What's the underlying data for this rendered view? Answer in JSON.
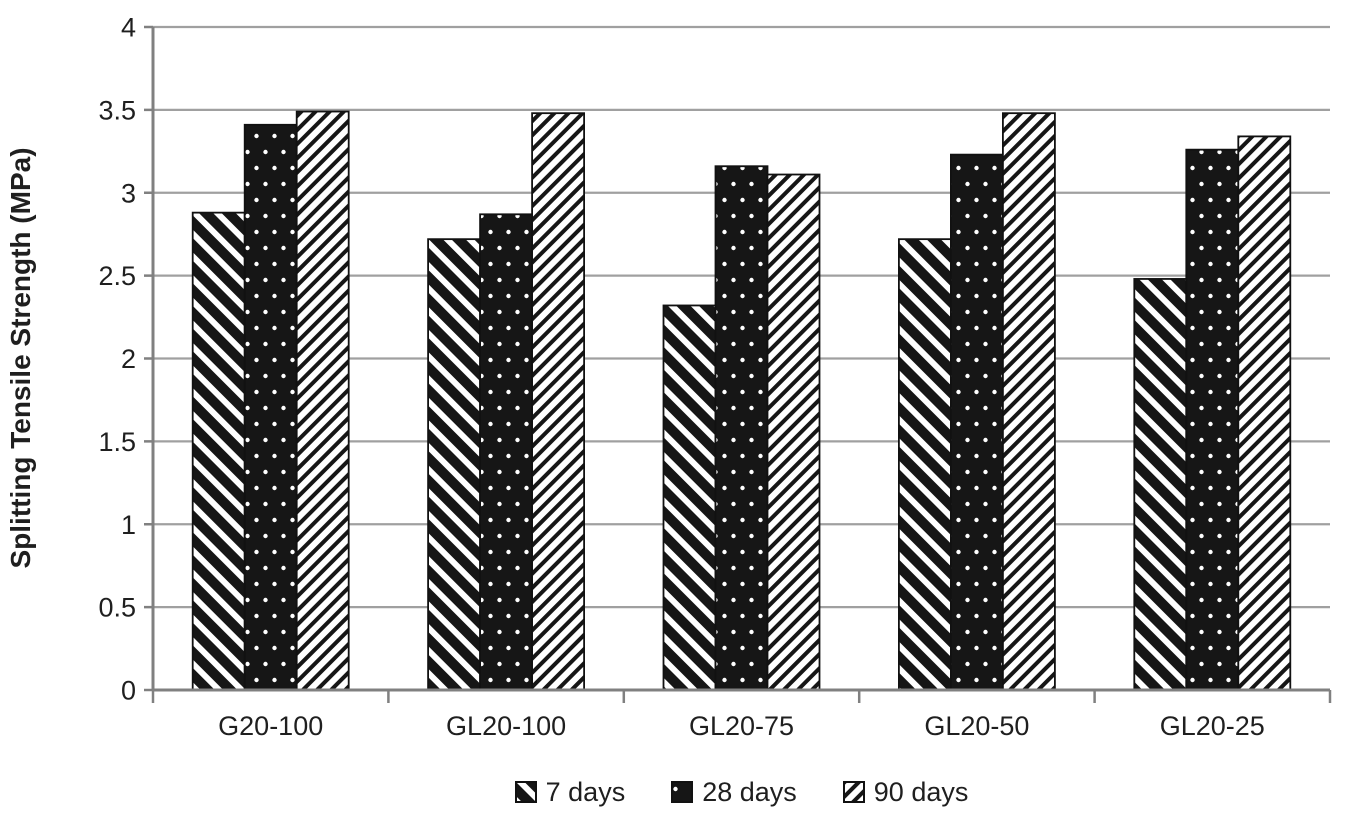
{
  "chart_data": {
    "type": "bar",
    "title": "",
    "xlabel": "",
    "ylabel": "Splitting Tensile Strength (MPa)",
    "ylim": [
      0,
      4
    ],
    "ytick_step": 0.5,
    "yticks": [
      "0",
      "0.5",
      "1",
      "1.5",
      "2",
      "2.5",
      "3",
      "3.5",
      "4"
    ],
    "categories": [
      "G20-100",
      "GL20-100",
      "GL20-75",
      "GL20-50",
      "GL20-25"
    ],
    "series": [
      {
        "name": "7 days",
        "pattern": "diagonal-down-hatch",
        "values": [
          2.88,
          2.72,
          2.32,
          2.72,
          2.48
        ]
      },
      {
        "name": "28 days",
        "pattern": "black-white-dots",
        "values": [
          3.41,
          2.87,
          3.16,
          3.23,
          3.26
        ]
      },
      {
        "name": "90 days",
        "pattern": "diagonal-up-hatch",
        "values": [
          3.49,
          3.48,
          3.11,
          3.48,
          3.34
        ]
      }
    ],
    "legend_position": "bottom",
    "grid": true,
    "colors": {
      "bar_fill": "#161616",
      "bar_stroke": "#111111",
      "pattern_background": "#ffffff",
      "grid_line": "#a0a0a0",
      "axis_line": "#808080",
      "text": "#1f1f1f",
      "background": "#ffffff"
    }
  }
}
